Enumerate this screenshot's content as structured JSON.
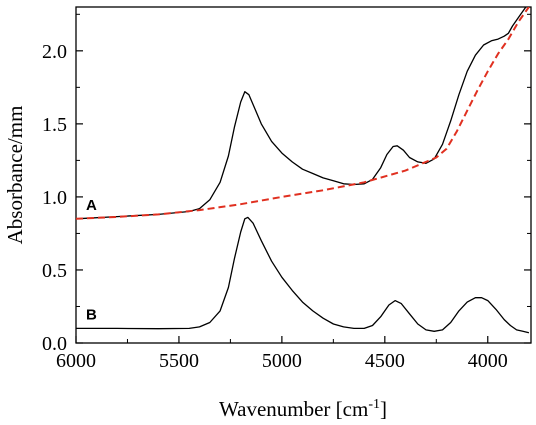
{
  "chart_data": {
    "type": "line",
    "xlabel": "Wavenumber [cm",
    "xlabel_sup": "-1",
    "xlabel_close": "]",
    "ylabel": "Absorbance/mm",
    "xlim": [
      6000,
      3790
    ],
    "ylim": [
      0.0,
      2.3
    ],
    "x_reversed": true,
    "x_ticks": [
      6000,
      5500,
      5000,
      4500,
      4000
    ],
    "x_tick_labels": [
      "6000",
      "5500",
      "5000",
      "4500",
      "4000"
    ],
    "y_ticks": [
      0.0,
      0.5,
      1.0,
      1.5,
      2.0
    ],
    "y_tick_labels": [
      "0.0",
      "0.5",
      "1.0",
      "1.5",
      "2.0"
    ],
    "grid": false,
    "series": [
      {
        "label": "A",
        "color": "#000000",
        "style": "solid",
        "points": [
          [
            6000,
            0.85
          ],
          [
            5800,
            0.865
          ],
          [
            5600,
            0.88
          ],
          [
            5450,
            0.9
          ],
          [
            5400,
            0.92
          ],
          [
            5350,
            0.98
          ],
          [
            5300,
            1.1
          ],
          [
            5260,
            1.28
          ],
          [
            5230,
            1.48
          ],
          [
            5200,
            1.65
          ],
          [
            5180,
            1.72
          ],
          [
            5160,
            1.7
          ],
          [
            5130,
            1.6
          ],
          [
            5100,
            1.5
          ],
          [
            5050,
            1.38
          ],
          [
            5000,
            1.3
          ],
          [
            4950,
            1.24
          ],
          [
            4900,
            1.19
          ],
          [
            4850,
            1.16
          ],
          [
            4800,
            1.13
          ],
          [
            4750,
            1.11
          ],
          [
            4700,
            1.09
          ],
          [
            4650,
            1.085
          ],
          [
            4600,
            1.09
          ],
          [
            4560,
            1.12
          ],
          [
            4520,
            1.2
          ],
          [
            4490,
            1.29
          ],
          [
            4460,
            1.345
          ],
          [
            4440,
            1.35
          ],
          [
            4410,
            1.32
          ],
          [
            4380,
            1.27
          ],
          [
            4340,
            1.24
          ],
          [
            4300,
            1.23
          ],
          [
            4260,
            1.26
          ],
          [
            4220,
            1.36
          ],
          [
            4180,
            1.52
          ],
          [
            4140,
            1.7
          ],
          [
            4100,
            1.86
          ],
          [
            4060,
            1.97
          ],
          [
            4020,
            2.04
          ],
          [
            3980,
            2.07
          ],
          [
            3950,
            2.08
          ],
          [
            3920,
            2.1
          ],
          [
            3900,
            2.12
          ],
          [
            3880,
            2.17
          ],
          [
            3860,
            2.21
          ],
          [
            3840,
            2.25
          ],
          [
            3820,
            2.29
          ],
          [
            3800,
            2.33
          ]
        ]
      },
      {
        "label": "",
        "color": "#e03020",
        "style": "dashed",
        "points": [
          [
            6000,
            0.85
          ],
          [
            5800,
            0.863
          ],
          [
            5600,
            0.88
          ],
          [
            5400,
            0.91
          ],
          [
            5200,
            0.95
          ],
          [
            5000,
            1.0
          ],
          [
            4800,
            1.045
          ],
          [
            4600,
            1.1
          ],
          [
            4400,
            1.18
          ],
          [
            4250,
            1.27
          ],
          [
            4200,
            1.33
          ],
          [
            4150,
            1.45
          ],
          [
            4100,
            1.59
          ],
          [
            4050,
            1.73
          ],
          [
            4000,
            1.86
          ],
          [
            3950,
            1.98
          ],
          [
            3900,
            2.08
          ],
          [
            3850,
            2.2
          ],
          [
            3800,
            2.3
          ]
        ]
      },
      {
        "label": "B",
        "color": "#000000",
        "style": "solid",
        "points": [
          [
            6000,
            0.1
          ],
          [
            5800,
            0.1
          ],
          [
            5600,
            0.098
          ],
          [
            5450,
            0.1
          ],
          [
            5400,
            0.11
          ],
          [
            5350,
            0.14
          ],
          [
            5300,
            0.22
          ],
          [
            5260,
            0.38
          ],
          [
            5230,
            0.58
          ],
          [
            5200,
            0.76
          ],
          [
            5180,
            0.85
          ],
          [
            5165,
            0.86
          ],
          [
            5140,
            0.82
          ],
          [
            5100,
            0.7
          ],
          [
            5050,
            0.56
          ],
          [
            5000,
            0.45
          ],
          [
            4950,
            0.36
          ],
          [
            4900,
            0.28
          ],
          [
            4850,
            0.22
          ],
          [
            4800,
            0.17
          ],
          [
            4750,
            0.13
          ],
          [
            4700,
            0.11
          ],
          [
            4650,
            0.1
          ],
          [
            4600,
            0.1
          ],
          [
            4560,
            0.12
          ],
          [
            4520,
            0.18
          ],
          [
            4480,
            0.26
          ],
          [
            4450,
            0.29
          ],
          [
            4420,
            0.27
          ],
          [
            4380,
            0.2
          ],
          [
            4340,
            0.13
          ],
          [
            4300,
            0.09
          ],
          [
            4260,
            0.08
          ],
          [
            4220,
            0.09
          ],
          [
            4180,
            0.14
          ],
          [
            4140,
            0.22
          ],
          [
            4100,
            0.28
          ],
          [
            4060,
            0.31
          ],
          [
            4030,
            0.31
          ],
          [
            4000,
            0.29
          ],
          [
            3960,
            0.23
          ],
          [
            3920,
            0.16
          ],
          [
            3890,
            0.12
          ],
          [
            3860,
            0.09
          ],
          [
            3830,
            0.08
          ],
          [
            3800,
            0.07
          ]
        ]
      }
    ]
  }
}
